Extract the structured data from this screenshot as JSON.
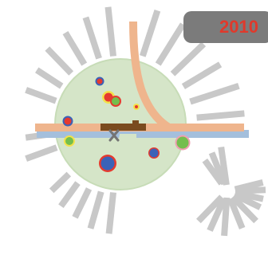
{
  "year_label": "2010",
  "colors": {
    "background": "#ffffff",
    "rays": "#c8c8c8",
    "site_circle_fill": "#d5e5c8",
    "site_circle_stroke": "#c7dcb7",
    "road": "#efb58d",
    "river": "#a4bfdc",
    "platform": "#7a4b1f",
    "badge_background": "#7b7b7b",
    "year_text": "#e0392b",
    "marker_red": "#e53a2f",
    "marker_blue": "#3a62b8",
    "marker_green": "#74be4d",
    "marker_yellow": "#f3e24a",
    "marker_outline_pink": "#ef9fb1"
  },
  "map_features": {
    "site_circle": "green-catchment-circle",
    "roads": [
      "road-horizontal",
      "road-north-curve"
    ],
    "river": "river-line",
    "platform": "platform-bar",
    "center_symbol": "center-cross-icon"
  },
  "markers": [
    {
      "name": "marker-red-small-top",
      "fill": "red",
      "ring": "blue"
    },
    {
      "name": "marker-red-mid",
      "fill": "red",
      "ring": "yellow"
    },
    {
      "name": "marker-green-mid",
      "fill": "green",
      "ring": "red"
    },
    {
      "name": "marker-yellow-tiny",
      "fill": "yellow",
      "ring": "yellow"
    },
    {
      "name": "marker-red-left",
      "fill": "red",
      "ring": "blue"
    },
    {
      "name": "marker-green-left",
      "fill": "green",
      "ring": "yellow"
    },
    {
      "name": "marker-blue-bottom",
      "fill": "blue",
      "ring": "red"
    },
    {
      "name": "marker-blue-right",
      "fill": "blue",
      "ring": "red"
    },
    {
      "name": "marker-green-edge",
      "fill": "green",
      "ring": "pink"
    }
  ]
}
